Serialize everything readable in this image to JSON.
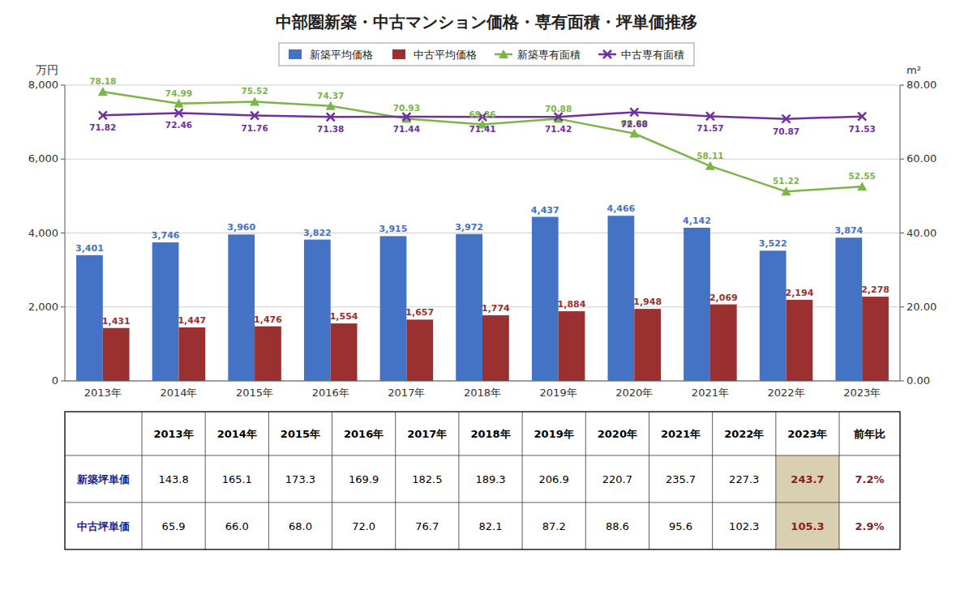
{
  "chart_data": {
    "type": "bar",
    "title": "中部圏新築・中古マンション価格・専有面積・坪単価推移",
    "categories": [
      "2013年",
      "2014年",
      "2015年",
      "2016年",
      "2017年",
      "2018年",
      "2019年",
      "2020年",
      "2021年",
      "2022年",
      "2023年"
    ],
    "series": [
      {
        "name": "新築平均価格",
        "type": "bar",
        "color": "#4472C4",
        "values": [
          3401,
          3746,
          3960,
          3822,
          3915,
          3972,
          4437,
          4466,
          4142,
          3522,
          3874
        ],
        "value_labels": [
          "3,401",
          "3,746",
          "3,960",
          "3,822",
          "3,915",
          "3,972",
          "4,437",
          "4,466",
          "4,142",
          "3,522",
          "3,874"
        ]
      },
      {
        "name": "中古平均価格",
        "type": "bar",
        "color": "#9B3030",
        "values": [
          1431,
          1447,
          1476,
          1554,
          1657,
          1774,
          1884,
          1948,
          2069,
          2194,
          2278
        ],
        "value_labels": [
          "1,431",
          "1,447",
          "1,476",
          "1,554",
          "1,657",
          "1,774",
          "1,884",
          "1,948",
          "2,069",
          "2,194",
          "2,278"
        ]
      },
      {
        "name": "新築専有面積",
        "type": "line",
        "axis": "y2",
        "color": "#7AB648",
        "marker": "triangle",
        "values": [
          78.18,
          74.99,
          75.52,
          74.37,
          70.93,
          69.36,
          70.88,
          66.9,
          58.11,
          51.22,
          52.55
        ],
        "value_labels": [
          "78.18",
          "74.99",
          "75.52",
          "74.37",
          "70.93",
          "69.36",
          "70.88",
          "66.90",
          "58.11",
          "51.22",
          "52.55"
        ]
      },
      {
        "name": "中古専有面積",
        "type": "line",
        "axis": "y2",
        "color": "#7030A0",
        "marker": "x",
        "values": [
          71.82,
          72.46,
          71.76,
          71.38,
          71.44,
          71.41,
          71.42,
          72.68,
          71.57,
          70.87,
          71.53
        ],
        "value_labels": [
          "71.82",
          "72.46",
          "71.76",
          "71.38",
          "71.44",
          "71.41",
          "71.42",
          "72.68",
          "71.57",
          "70.87",
          "71.53"
        ]
      }
    ],
    "ylim": [
      0,
      8000
    ],
    "yticks": [
      0,
      {
        "value": 2000,
        "label": "2,000"
      },
      {
        "value": 4000,
        "label": "4,000"
      },
      {
        "value": 6000,
        "label": "6,000"
      },
      {
        "value": 8000,
        "label": "8,000"
      }
    ],
    "y2lim": [
      0.0,
      80.0
    ],
    "y2ticks": [
      {
        "value": 0.0,
        "label": "0.00"
      },
      {
        "value": 20.0,
        "label": "20.00"
      },
      {
        "value": 40.0,
        "label": "40.00"
      },
      {
        "value": 60.0,
        "label": "60.00"
      },
      {
        "value": 80.0,
        "label": "80.00"
      }
    ],
    "ylabel": "万円",
    "y2label": "m²",
    "grid": true,
    "legend": "top",
    "data_labels": true,
    "table": {
      "yoy_header": "前年比",
      "highlight_color": "#D8D0B0",
      "highlight_text_color": "#8B2020",
      "rows": [
        {
          "name": "新築坪単価",
          "name_color": "#1F1F8F",
          "values": [
            143.8,
            165.1,
            173.3,
            169.9,
            182.5,
            189.3,
            206.9,
            220.7,
            235.7,
            227.3,
            243.7
          ],
          "value_labels": [
            "143.8",
            "165.1",
            "173.3",
            "169.9",
            "182.5",
            "189.3",
            "206.9",
            "220.7",
            "235.7",
            "227.3",
            "243.7"
          ],
          "yoy": 7.2,
          "yoy_label": "7.2%"
        },
        {
          "name": "中古坪単価",
          "name_color": "#1F1F8F",
          "values": [
            65.9,
            66.0,
            68.0,
            72.0,
            76.7,
            82.1,
            87.2,
            88.6,
            95.6,
            102.3,
            105.3
          ],
          "value_labels": [
            "65.9",
            "66.0",
            "68.0",
            "72.0",
            "76.7",
            "82.1",
            "87.2",
            "88.6",
            "95.6",
            "102.3",
            "105.3"
          ],
          "yoy": 2.9,
          "yoy_label": "2.9%"
        }
      ]
    }
  }
}
